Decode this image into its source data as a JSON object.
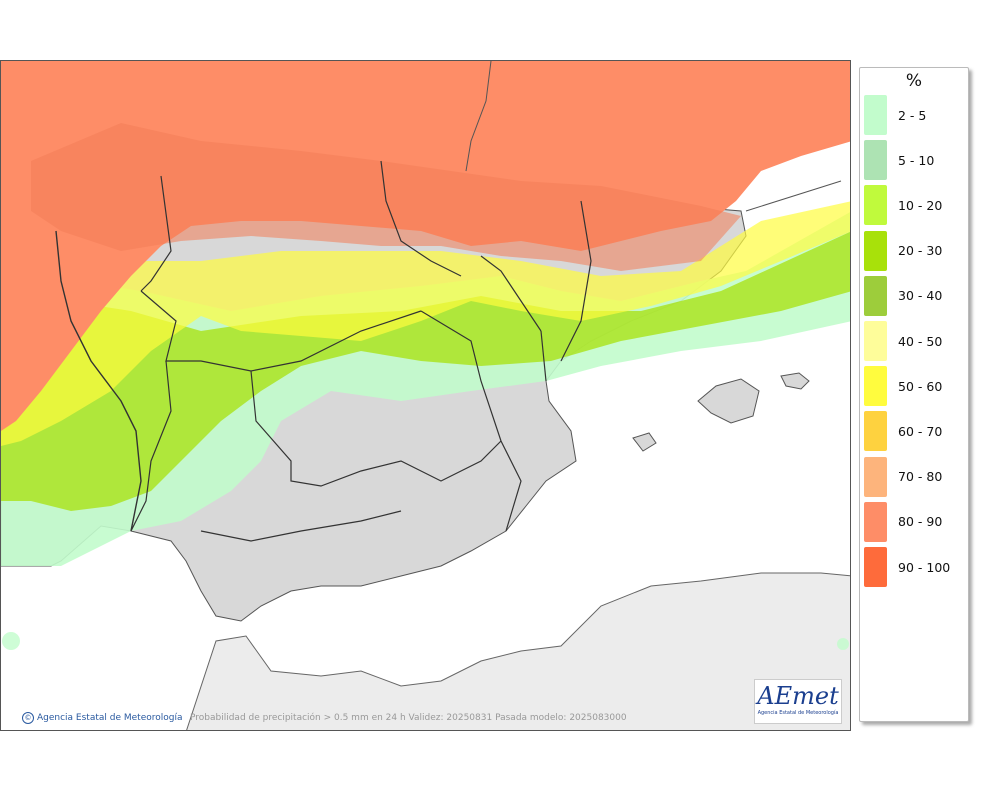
{
  "map": {
    "caption": "Probabilidad de precipitación > 0.5 mm en 24 h Validez: 20250831 Pasada modelo: 2025083000",
    "credit": "Agencia Estatal de Meteorología",
    "credit_icon": "copyright-icon",
    "logo_text": "AEmet",
    "logo_subtitle": "Agencia Estatal de Meteorología"
  },
  "legend": {
    "title": "%",
    "items": [
      {
        "label": "2 - 5",
        "color": "#c2fccc"
      },
      {
        "label": "5 - 10",
        "color": "#ade3b3"
      },
      {
        "label": "10 - 20",
        "color": "#c0fa3c"
      },
      {
        "label": "20 - 30",
        "color": "#a8e10a"
      },
      {
        "label": "30 - 40",
        "color": "#9dcd3b"
      },
      {
        "label": "40 - 50",
        "color": "#fefd9a"
      },
      {
        "label": "50 - 60",
        "color": "#fffc3e"
      },
      {
        "label": "60 - 70",
        "color": "#fed23f"
      },
      {
        "label": "70 - 80",
        "color": "#fdb47c"
      },
      {
        "label": "80 - 90",
        "color": "#fe8d67"
      },
      {
        "label": "90 - 100",
        "color": "#fe6b3b"
      }
    ]
  },
  "colors": {
    "land_base": "#d8d8d8",
    "sea": "#ffffff",
    "borders": "#333333"
  }
}
